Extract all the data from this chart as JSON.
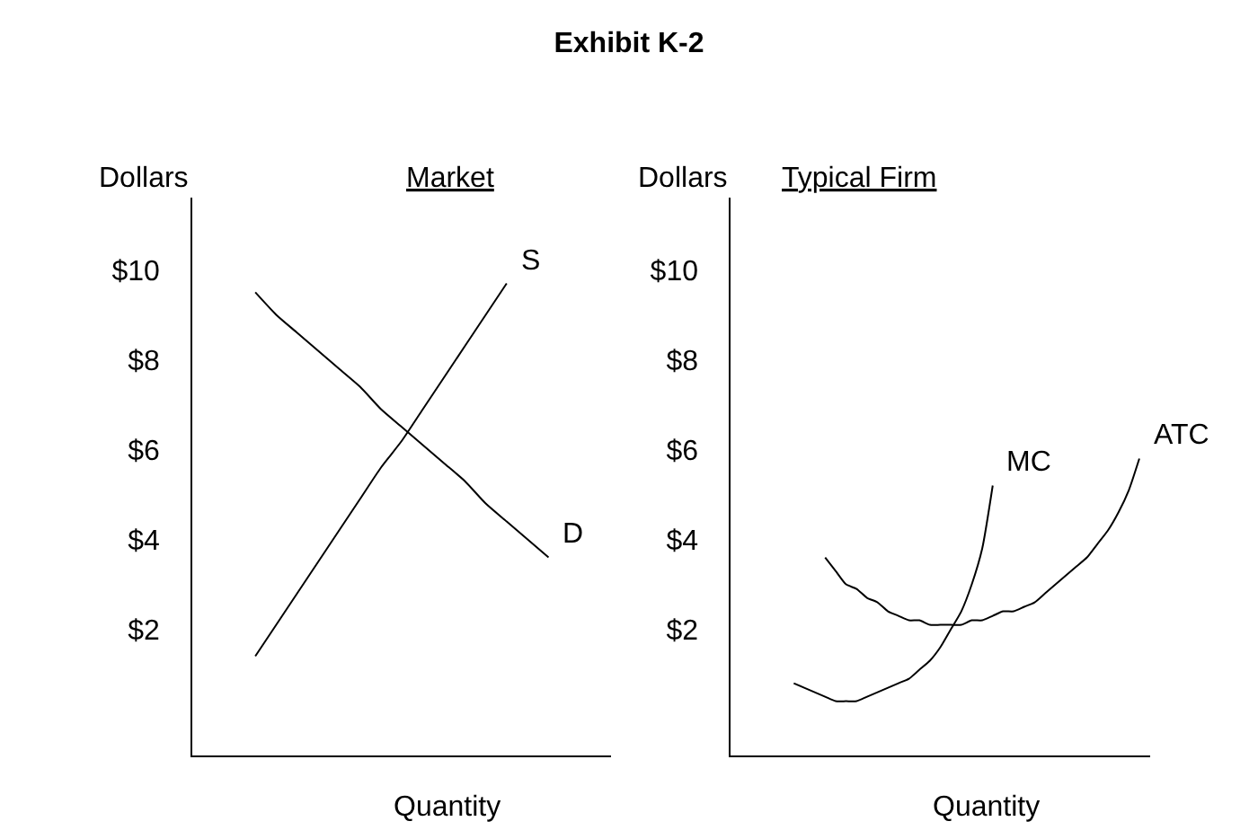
{
  "chart_data": [
    {
      "type": "line",
      "title": "Exhibit K-2",
      "subtitle": "Market",
      "xlabel": "Quantity",
      "ylabel": "Dollars",
      "categories": [
        null,
        null,
        null,
        null,
        null,
        null,
        null,
        null,
        null,
        null,
        null,
        null,
        null,
        null,
        null,
        null,
        null,
        null,
        null,
        null,
        null
      ],
      "ylim": [
        -0.8,
        11.6
      ],
      "yticks": [
        {
          "value": 2,
          "label": "$2"
        },
        {
          "value": 4,
          "label": "$4"
        },
        {
          "value": 6,
          "label": "$6"
        },
        {
          "value": 8,
          "label": "$8"
        },
        {
          "value": 10,
          "label": "$10"
        }
      ],
      "tick_labels": "y",
      "marker": "none",
      "line_style": "solid",
      "series": [
        {
          "name": "S",
          "color": "#000000",
          "values": [
            null,
            null,
            null,
            1.4,
            2.1,
            2.8,
            3.5,
            4.2,
            4.9,
            5.6,
            6.2,
            6.9,
            7.6,
            8.3,
            9.0,
            9.7,
            null,
            null,
            null,
            null,
            null
          ]
        },
        {
          "name": "D",
          "color": "#000000",
          "values": [
            null,
            null,
            null,
            9.5,
            9.0,
            8.6,
            8.2,
            7.8,
            7.4,
            6.9,
            6.5,
            6.1,
            5.7,
            5.3,
            4.8,
            4.4,
            4.0,
            3.6,
            null,
            null,
            null
          ]
        }
      ]
    },
    {
      "type": "line",
      "subtitle": "Typical Firm",
      "xlabel": "Quantity",
      "ylabel": "Dollars",
      "categories": [
        null,
        null,
        null,
        null,
        null,
        null,
        null,
        null,
        null,
        null,
        null,
        null,
        null,
        null,
        null,
        null,
        null,
        null,
        null,
        null,
        null,
        null,
        null,
        null,
        null,
        null,
        null,
        null,
        null,
        null,
        null,
        null,
        null,
        null,
        null,
        null,
        null,
        null,
        null,
        null,
        null
      ],
      "ylim": [
        -0.8,
        11.6
      ],
      "yticks": [
        {
          "value": 2,
          "label": "$2"
        },
        {
          "value": 4,
          "label": "$4"
        },
        {
          "value": 6,
          "label": "$6"
        },
        {
          "value": 8,
          "label": "$8"
        },
        {
          "value": 10,
          "label": "$10"
        }
      ],
      "tick_labels": "y",
      "marker": "none",
      "line_style": "solid",
      "series": [
        {
          "name": "MC",
          "color": "#000000",
          "values": [
            null,
            null,
            null,
            null,
            null,
            null,
            0.8,
            0.7,
            0.6,
            0.5,
            0.4,
            0.4,
            0.4,
            0.5,
            0.6,
            0.7,
            0.8,
            0.9,
            1.1,
            1.3,
            1.6,
            2.0,
            2.4,
            3.0,
            3.8,
            5.2,
            null,
            null,
            null,
            null,
            null,
            null,
            null,
            null,
            null,
            null,
            null,
            null,
            null,
            null,
            null
          ]
        },
        {
          "name": "ATC",
          "color": "#000000",
          "values": [
            null,
            null,
            null,
            null,
            null,
            null,
            null,
            null,
            null,
            3.6,
            3.3,
            3.0,
            2.9,
            2.7,
            2.6,
            2.4,
            2.3,
            2.2,
            2.2,
            2.1,
            2.1,
            2.1,
            2.1,
            2.2,
            2.2,
            2.3,
            2.4,
            2.4,
            2.5,
            2.6,
            2.8,
            3.0,
            3.2,
            3.4,
            3.6,
            3.9,
            4.2,
            4.6,
            5.1,
            5.8,
            null
          ]
        }
      ]
    }
  ]
}
